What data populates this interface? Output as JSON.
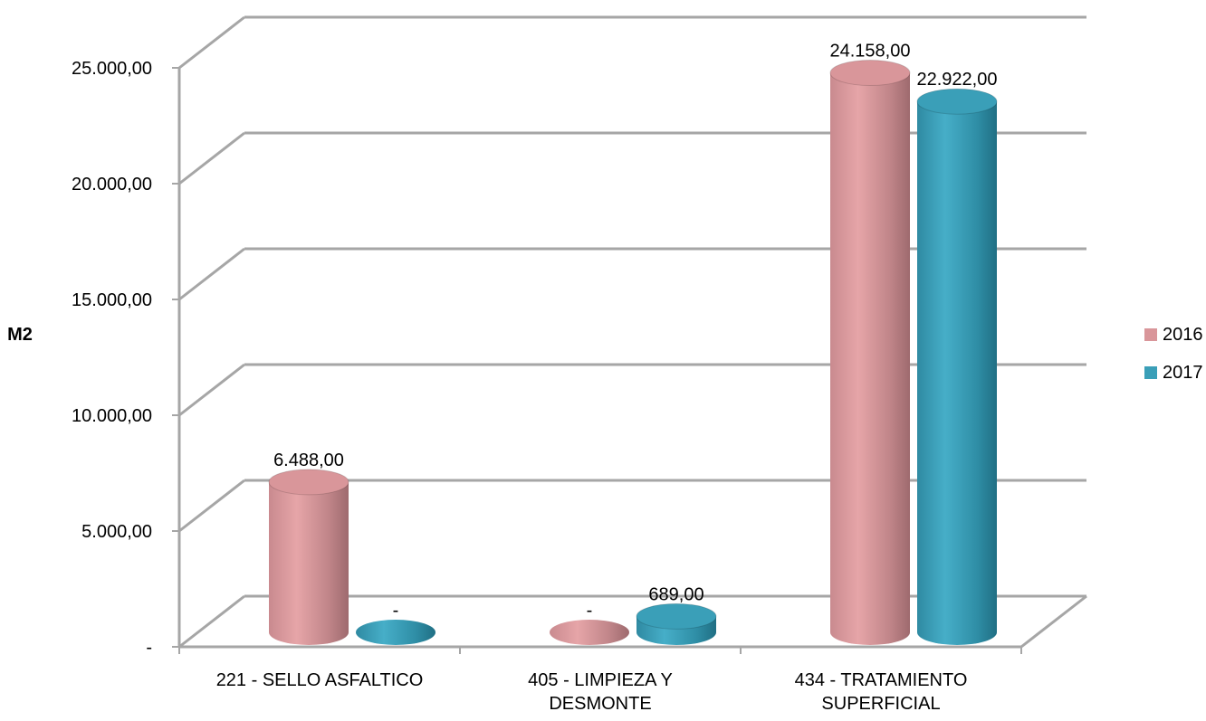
{
  "chart_data": {
    "type": "bar",
    "style": "3d-cylinder",
    "categories": [
      "221 - SELLO ASFALTICO",
      "405 - LIMPIEZA Y DESMONTE",
      "434 - TRATAMIENTO SUPERFICIAL"
    ],
    "series": [
      {
        "name": "2016",
        "color": "#d9969a",
        "values": [
          6488,
          0,
          24158
        ],
        "labels": [
          "6.488,00",
          "-",
          "24.158,00"
        ]
      },
      {
        "name": "2017",
        "color": "#3a9fb8",
        "values": [
          0,
          689,
          22922
        ],
        "labels": [
          "-",
          "689,00",
          "22.922,00"
        ]
      }
    ],
    "ylabel": "M2",
    "ylim": [
      0,
      25000
    ],
    "yticks": [
      0,
      5000,
      10000,
      15000,
      20000,
      25000
    ],
    "ytick_labels": [
      "-",
      "5.000,00",
      "10.000,00",
      "15.000,00",
      "20.000,00",
      "25.000,00"
    ],
    "grid": true,
    "legend_position": "right"
  }
}
